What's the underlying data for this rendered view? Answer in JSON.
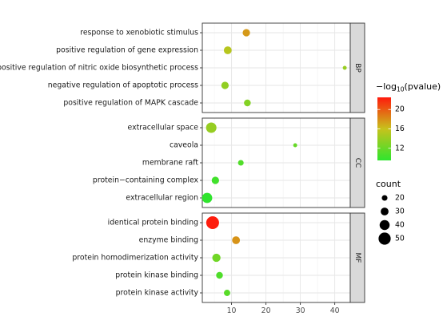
{
  "chart_data": {
    "type": "scatter",
    "x": {
      "ticks": [
        10,
        20,
        30,
        40
      ],
      "range": [
        1.5,
        44.5
      ]
    },
    "panels": [
      {
        "label": "BP",
        "points": [
          {
            "term": "response to xenobiotic stimulus",
            "x": 14.3,
            "pvalue_log": 17.6,
            "count": 28
          },
          {
            "term": "positive regulation of gene expression",
            "x": 8.9,
            "pvalue_log": 15.3,
            "count": 30
          },
          {
            "term": "positive regulation of nitric oxide biosynthetic process",
            "x": 42.9,
            "pvalue_log": 14.0,
            "count": 12
          },
          {
            "term": "negative regulation of apoptotic process",
            "x": 8.1,
            "pvalue_log": 13.7,
            "count": 28
          },
          {
            "term": "positive regulation of MAPK cascade",
            "x": 14.6,
            "pvalue_log": 13.1,
            "count": 25
          }
        ]
      },
      {
        "label": "CC",
        "points": [
          {
            "term": "extracellular space",
            "x": 4.1,
            "pvalue_log": 13.9,
            "count": 42
          },
          {
            "term": "caveola",
            "x": 28.5,
            "pvalue_log": 11.9,
            "count": 12
          },
          {
            "term": "membrane raft",
            "x": 12.7,
            "pvalue_log": 11.0,
            "count": 20
          },
          {
            "term": "protein−containing complex",
            "x": 5.3,
            "pvalue_log": 10.3,
            "count": 28
          },
          {
            "term": "extracellular region",
            "x": 2.9,
            "pvalue_log": 9.6,
            "count": 41
          }
        ]
      },
      {
        "label": "MF",
        "points": [
          {
            "term": "identical protein binding",
            "x": 4.5,
            "pvalue_log": 22.4,
            "count": 53
          },
          {
            "term": "enzyme binding",
            "x": 11.3,
            "pvalue_log": 17.8,
            "count": 30
          },
          {
            "term": "protein homodimerization activity",
            "x": 5.6,
            "pvalue_log": 12.3,
            "count": 32
          },
          {
            "term": "protein kinase binding",
            "x": 6.5,
            "pvalue_log": 10.9,
            "count": 25
          },
          {
            "term": "protein kinase activity",
            "x": 8.7,
            "pvalue_log": 11.3,
            "count": 23
          }
        ]
      }
    ],
    "color_legend": {
      "title_prefix": "−log",
      "title_sub": "10",
      "title_suffix": "(pvalue)",
      "ticks": [
        12,
        16,
        20
      ],
      "range": [
        9.5,
        22.5
      ],
      "colors": {
        "low": "#2ee52e",
        "mid": "#c7c21c",
        "high": "#ff1a0d"
      }
    },
    "size_legend": {
      "title": "count",
      "values": [
        20,
        30,
        40,
        50
      ]
    }
  }
}
